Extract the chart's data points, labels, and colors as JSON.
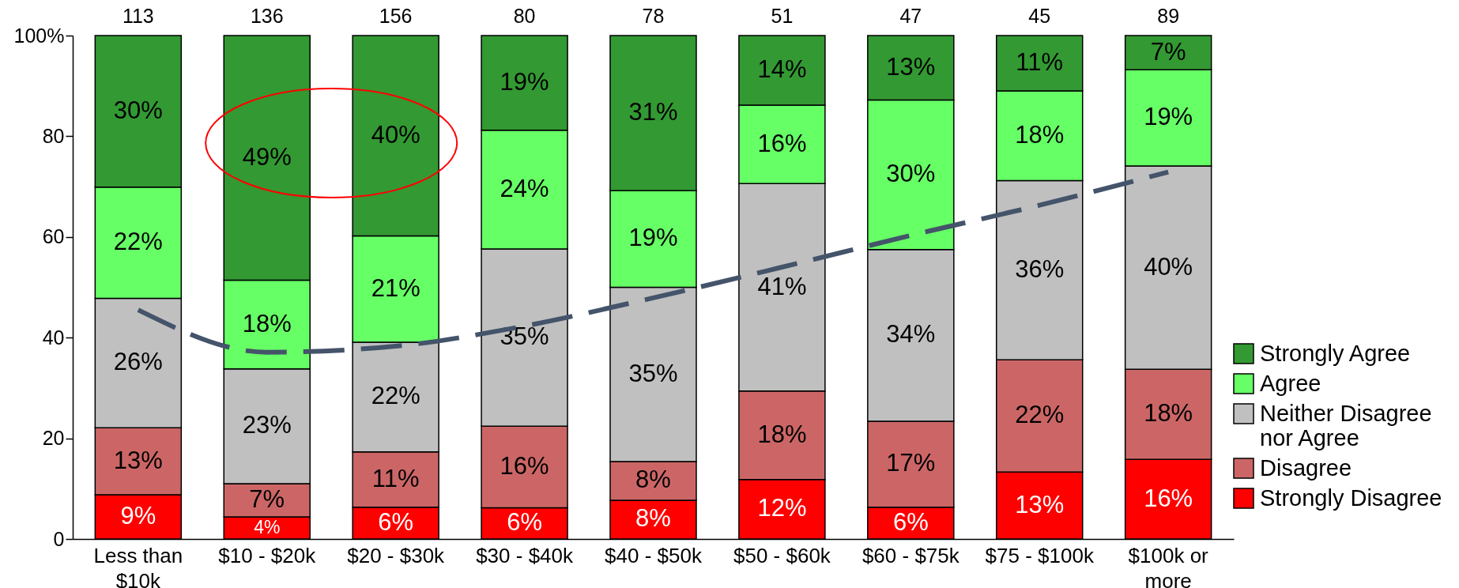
{
  "chart_data": {
    "type": "bar",
    "stacked": true,
    "categories": [
      "Less than $10k",
      "$10 - $20k",
      "$20 - $30k",
      "$30 - $40k",
      "$40 - $50k",
      "$50 - $60k",
      "$60 - $75k",
      "$75 - $100k",
      "$100k or more"
    ],
    "series": [
      {
        "name": "Strongly Disagree",
        "color": "#ff0000",
        "values": [
          8.8,
          4.4,
          6.3,
          6.2,
          7.7,
          11.8,
          6.3,
          13.3,
          15.8
        ],
        "value_labels": [
          "9%",
          "4%",
          "6%",
          "6%",
          "8%",
          "12%",
          "6%",
          "13%",
          "16%"
        ]
      },
      {
        "name": "Disagree",
        "color": "#cc6666",
        "values": [
          13.3,
          6.6,
          11.0,
          16.2,
          7.7,
          17.6,
          17.1,
          22.3,
          17.9
        ],
        "value_labels": [
          "13%",
          "7%",
          "11%",
          "16%",
          "8%",
          "18%",
          "17%",
          "22%",
          "18%"
        ]
      },
      {
        "name": "Neither Disagree nor Agree",
        "color": "#c0c0c0",
        "values": [
          25.7,
          22.8,
          21.8,
          35.2,
          34.6,
          41.2,
          34.1,
          35.6,
          40.4
        ],
        "value_labels": [
          "26%",
          "23%",
          "22%",
          "35%",
          "35%",
          "41%",
          "34%",
          "36%",
          "40%"
        ]
      },
      {
        "name": "Agree",
        "color": "#66ff66",
        "values": [
          22.1,
          17.6,
          21.1,
          23.6,
          19.2,
          15.6,
          29.7,
          17.8,
          19.1
        ],
        "value_labels": [
          "22%",
          "18%",
          "21%",
          "24%",
          "19%",
          "16%",
          "30%",
          "18%",
          "19%"
        ]
      },
      {
        "name": "Strongly Agree",
        "color": "#339933",
        "values": [
          30.1,
          48.6,
          39.8,
          18.8,
          30.8,
          13.8,
          12.8,
          11.0,
          6.8
        ],
        "value_labels": [
          "30%",
          "49%",
          "40%",
          "19%",
          "31%",
          "14%",
          "13%",
          "11%",
          "7%"
        ]
      },
      {
        "type": "line",
        "color": "#44546a",
        "line_style": "dashed",
        "values": [
          45.5,
          37.1,
          38.3,
          42.3,
          47.9,
          54.0,
          60.3,
          66.3,
          72.9
        ]
      }
    ],
    "ylim": [
      0,
      100
    ],
    "yticks": [
      0,
      20,
      40,
      60,
      80,
      {
        "value": 100,
        "label": "100%"
      }
    ],
    "legend": "bottom right",
    "annotations": [
      {
        "text": "113",
        "x": "Less than $10k",
        "y": 100
      },
      {
        "text": "136",
        "x": "$10 - $20k",
        "y": 100
      },
      {
        "text": "156",
        "x": "$20 - $30k",
        "y": 100
      },
      {
        "text": "80",
        "x": "$30 - $40k",
        "y": 100
      },
      {
        "text": "78",
        "x": "$40 - $50k",
        "y": 100
      },
      {
        "text": "51",
        "x": "$50 - $60k",
        "y": 100
      },
      {
        "text": "47",
        "x": "$60 - $75k",
        "y": 100
      },
      {
        "text": "45",
        "x": "$75 - $100k",
        "y": 100
      },
      {
        "text": "89",
        "x": "$100k or more",
        "y": 100
      }
    ]
  }
}
